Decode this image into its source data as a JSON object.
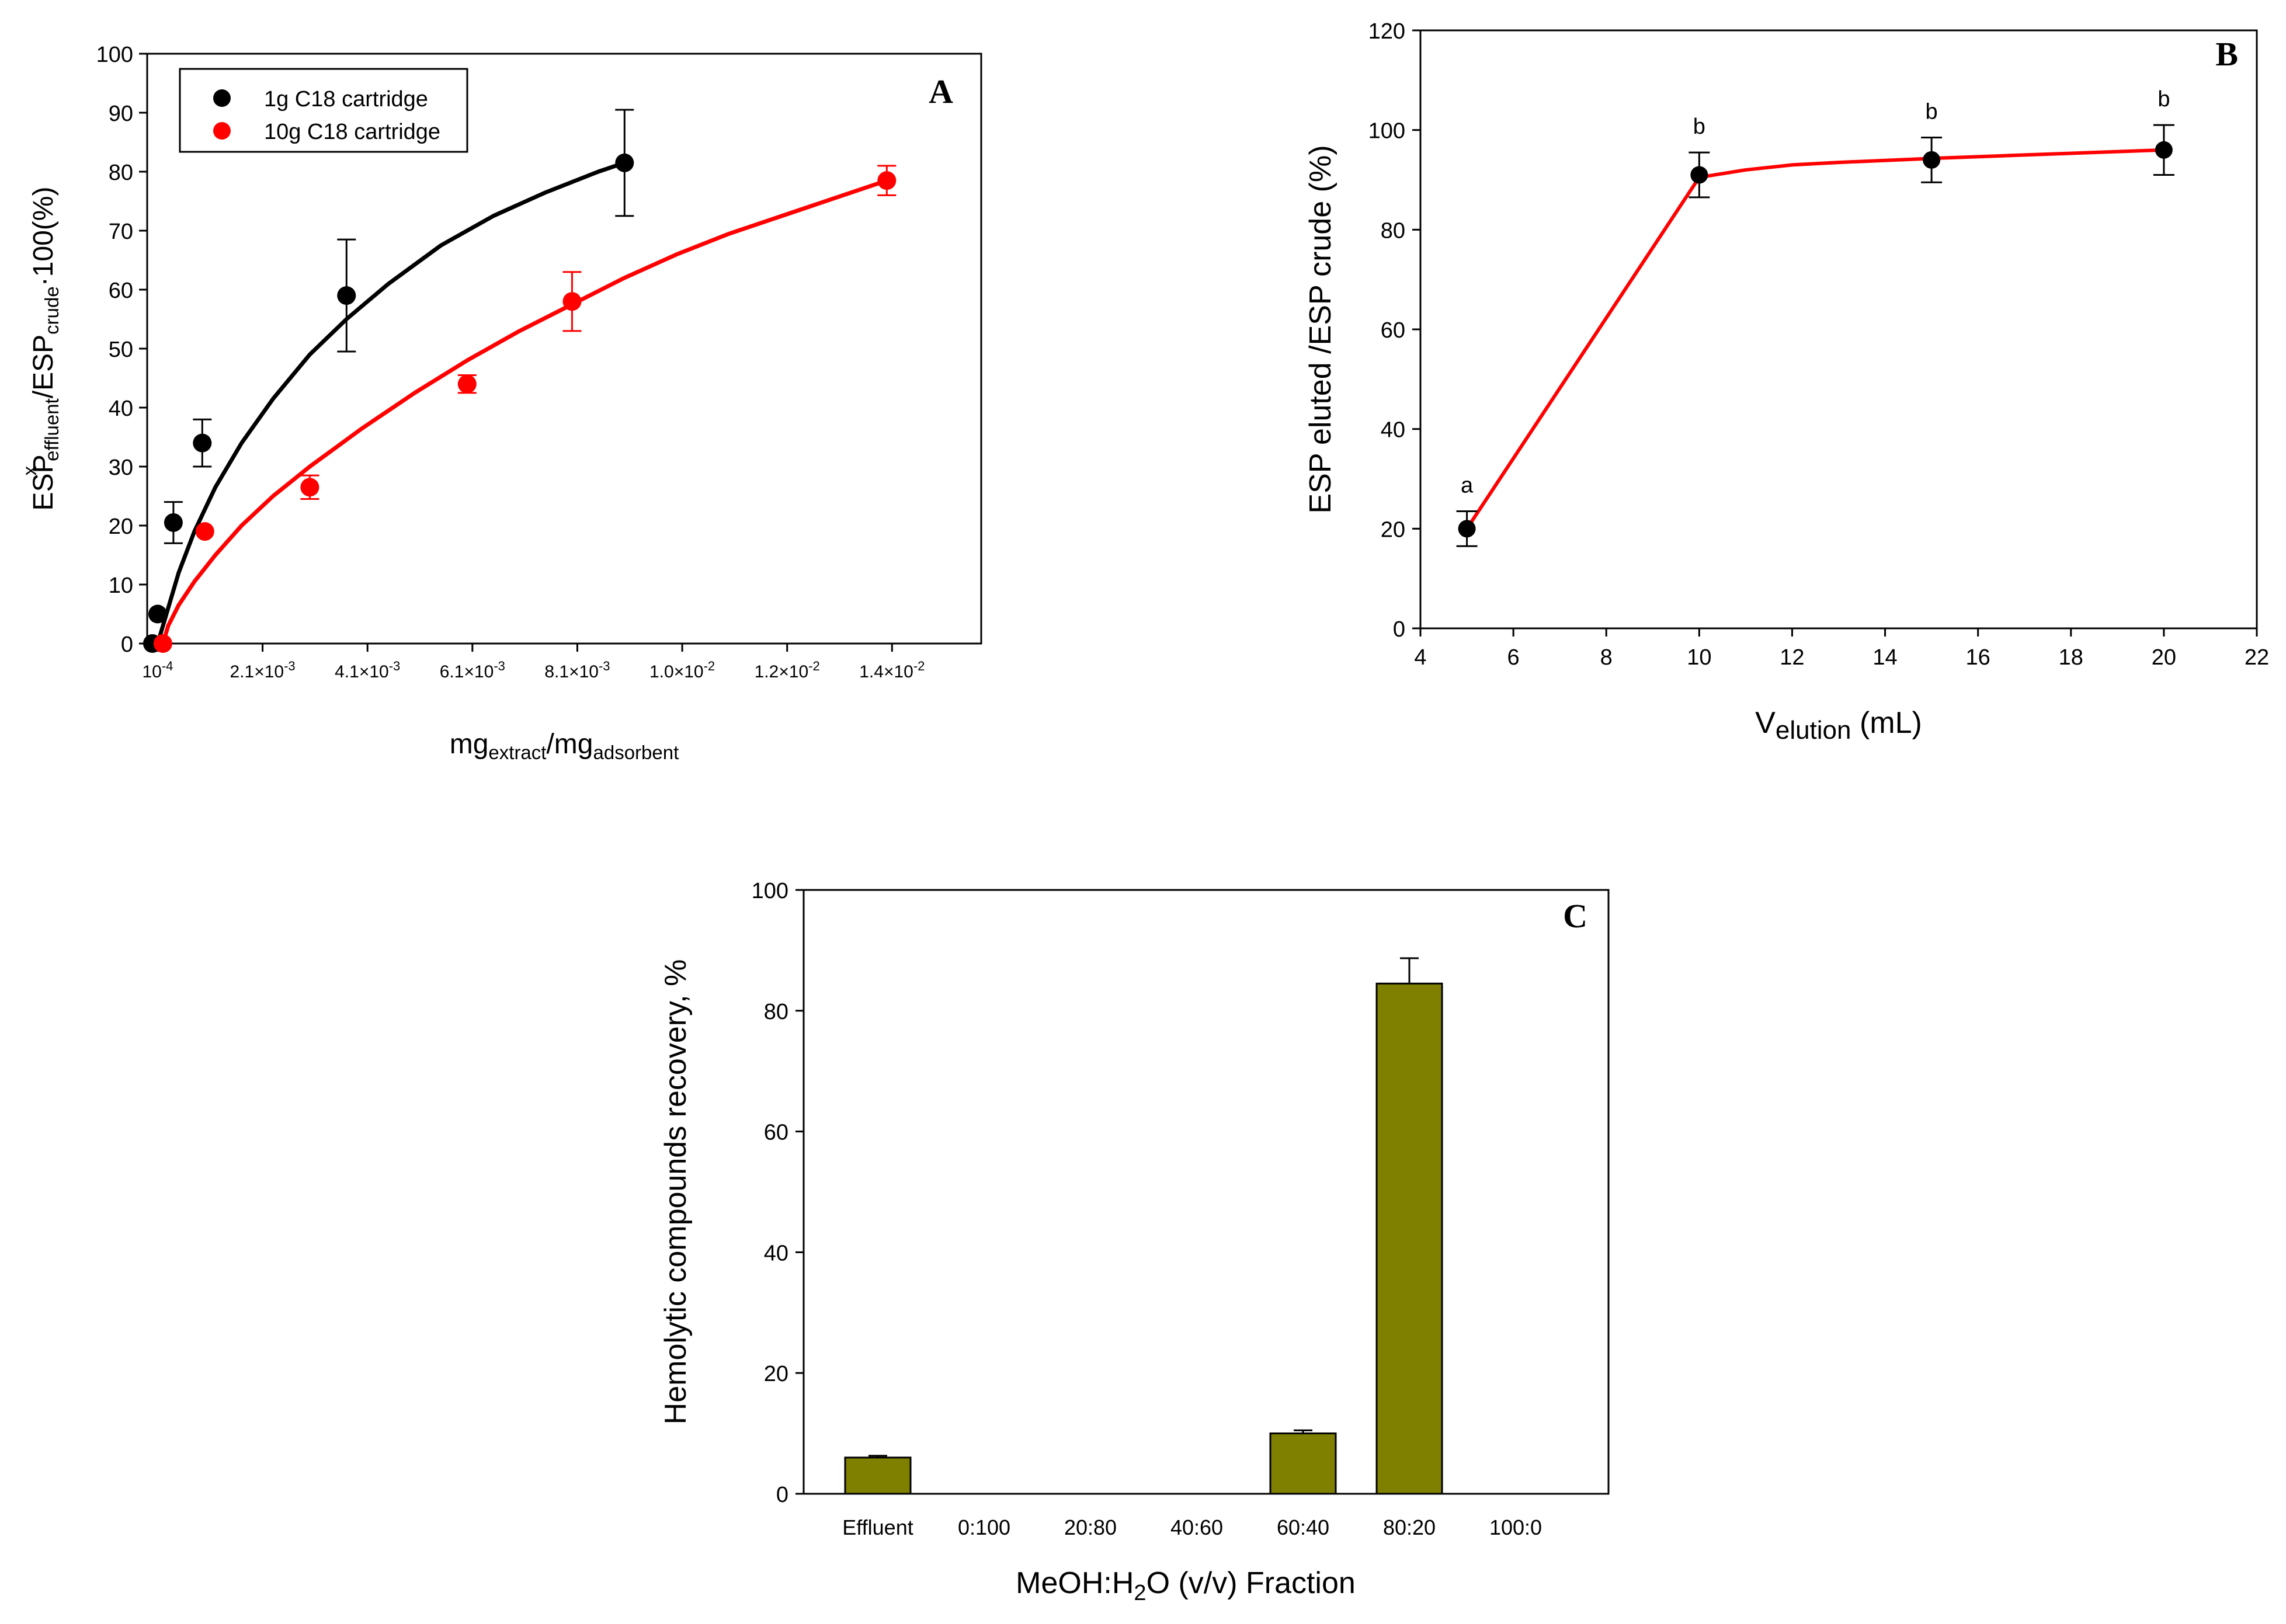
{
  "chart_data": [
    {
      "id": "A",
      "type": "scatter",
      "panel_label": "A",
      "xlabel": {
        "main": "mg",
        "sub1": "extract",
        "mid": "/mg",
        "sub2": "adsorbent"
      },
      "ylabel": {
        "p1": "ESP",
        "sup": "x",
        "sub1": "effluent",
        "p2": "/ESP",
        "sub2": "crude",
        "p3": "·100(%)"
      },
      "xlim": [
        -0.0001,
        0.0158
      ],
      "ylim": [
        0,
        100
      ],
      "yticks": [
        0,
        10,
        20,
        30,
        40,
        50,
        60,
        70,
        80,
        90,
        100
      ],
      "ytick_labels": [
        "0",
        "10",
        "20",
        "30",
        "40",
        "50",
        "60",
        "70",
        "80",
        "90",
        "100"
      ],
      "xticks": [
        0.0001,
        0.0021,
        0.0041,
        0.0061,
        0.0081,
        0.0101,
        0.0121,
        0.0141
      ],
      "xtick_labels": [
        {
          "m": "10",
          "e": "-4"
        },
        {
          "m": "2.1×10",
          "e": "-3"
        },
        {
          "m": "4.1×10",
          "e": "-3"
        },
        {
          "m": "6.1×10",
          "e": "-3"
        },
        {
          "m": "8.1×10",
          "e": "-3"
        },
        {
          "m": "1.0×10",
          "e": "-2"
        },
        {
          "m": "1.2×10",
          "e": "-2"
        },
        {
          "m": "1.4×10",
          "e": "-2"
        }
      ],
      "legend": {
        "position": "top-left",
        "entries": [
          "1g C18 cartridge",
          "10g C18 cartridge"
        ]
      },
      "series": [
        {
          "name": "1g C18 cartridge",
          "color": "#000000",
          "x": [
            0.0,
            0.0001,
            0.0004,
            0.00095,
            0.0037,
            0.009
          ],
          "y": [
            0,
            5,
            20.5,
            34,
            59,
            81.5
          ],
          "err": [
            0,
            0,
            3.5,
            4,
            9.5,
            9
          ],
          "fit_x": [
            0.0001,
            0.0002,
            0.0003,
            0.0005,
            0.0008,
            0.0012,
            0.0017,
            0.0023,
            0.003,
            0.0037,
            0.0045,
            0.0055,
            0.0065,
            0.0075,
            0.0085,
            0.009
          ],
          "fit_y": [
            0,
            3,
            6,
            12,
            19,
            26.5,
            34,
            41.5,
            49,
            55,
            61,
            67.5,
            72.5,
            76.5,
            80,
            81.5
          ]
        },
        {
          "name": "10g C18 cartridge",
          "color": "#ff0000",
          "x": [
            0.0002,
            0.001,
            0.003,
            0.006,
            0.008,
            0.014
          ],
          "y": [
            0,
            19,
            26.5,
            44,
            58,
            78.5
          ],
          "err": [
            0,
            0,
            2,
            1.5,
            5,
            2.5
          ],
          "fit_x": [
            0.0002,
            0.0003,
            0.0005,
            0.0008,
            0.0012,
            0.0017,
            0.0023,
            0.003,
            0.004,
            0.005,
            0.006,
            0.007,
            0.008,
            0.009,
            0.01,
            0.011,
            0.012,
            0.013,
            0.014
          ],
          "fit_y": [
            0,
            3,
            6.5,
            10.5,
            15,
            20,
            25,
            30,
            36.5,
            42.5,
            48,
            53,
            57.5,
            62,
            66,
            69.5,
            72.5,
            75.5,
            78.5
          ]
        }
      ]
    },
    {
      "id": "B",
      "type": "line",
      "panel_label": "B",
      "xlabel": {
        "main": "V",
        "sub": "elution",
        "rest": " (mL)"
      },
      "ylabel": "ESP eluted /ESP crude (%)",
      "xlim": [
        4,
        22
      ],
      "ylim": [
        0,
        120
      ],
      "xticks": [
        4,
        6,
        8,
        10,
        12,
        14,
        16,
        18,
        20,
        22
      ],
      "xtick_labels": [
        "4",
        "6",
        "8",
        "10",
        "12",
        "14",
        "16",
        "18",
        "20",
        "22"
      ],
      "yticks": [
        0,
        20,
        40,
        60,
        80,
        100,
        120
      ],
      "ytick_labels": [
        "0",
        "20",
        "40",
        "60",
        "80",
        "100",
        "120"
      ],
      "series": [
        {
          "name": "ESP eluted",
          "color": "#000000",
          "line_color": "#ff0000",
          "x": [
            5,
            10,
            15,
            20
          ],
          "y": [
            20,
            91,
            94,
            96
          ],
          "err": [
            3.5,
            4.5,
            4.5,
            5
          ],
          "annotations": [
            "a",
            "b",
            "b",
            "b"
          ],
          "fit_x": [
            5,
            10,
            11,
            12,
            13,
            15,
            17,
            20
          ],
          "fit_y": [
            20,
            90.5,
            92,
            93,
            93.5,
            94.3,
            95,
            96
          ]
        }
      ]
    },
    {
      "id": "C",
      "type": "bar",
      "panel_label": "C",
      "xlabel": {
        "p1": "MeOH:H",
        "sub": "2",
        "p2": "O (v/v) Fraction"
      },
      "ylabel": "Hemolytic compounds recovery, %",
      "ylim": [
        0,
        100
      ],
      "yticks": [
        0,
        20,
        40,
        60,
        80,
        100
      ],
      "ytick_labels": [
        "0",
        "20",
        "40",
        "60",
        "80",
        "100"
      ],
      "categories": [
        "Effluent",
        "0:100",
        "20:80",
        "40:60",
        "60:40",
        "80:20",
        "100:0"
      ],
      "values": [
        6,
        0,
        0,
        0,
        10,
        84.5,
        0
      ],
      "err": [
        0.3,
        0,
        0,
        0,
        0.5,
        4.2,
        0
      ],
      "color": "#808000"
    }
  ]
}
